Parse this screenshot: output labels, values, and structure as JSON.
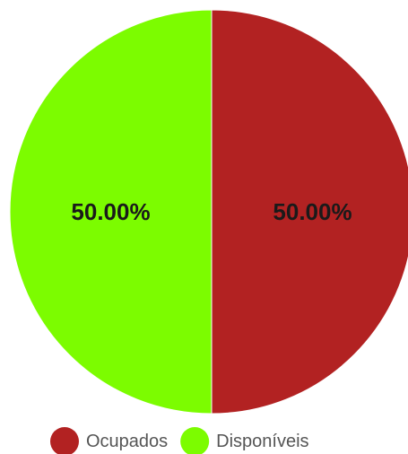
{
  "chart_data": {
    "type": "pie",
    "title": "",
    "categories": [
      "Ocupados",
      "Disponíveis"
    ],
    "values": [
      50,
      50
    ],
    "data_labels": [
      "50.00%",
      "50.00%"
    ],
    "colors": [
      "#b22222",
      "#7cfc00"
    ],
    "label_colors": [
      "#1a1a1a",
      "#1a1a1a"
    ],
    "legend_position": "bottom",
    "start_angle_deg": 0,
    "direction": "clockwise"
  }
}
